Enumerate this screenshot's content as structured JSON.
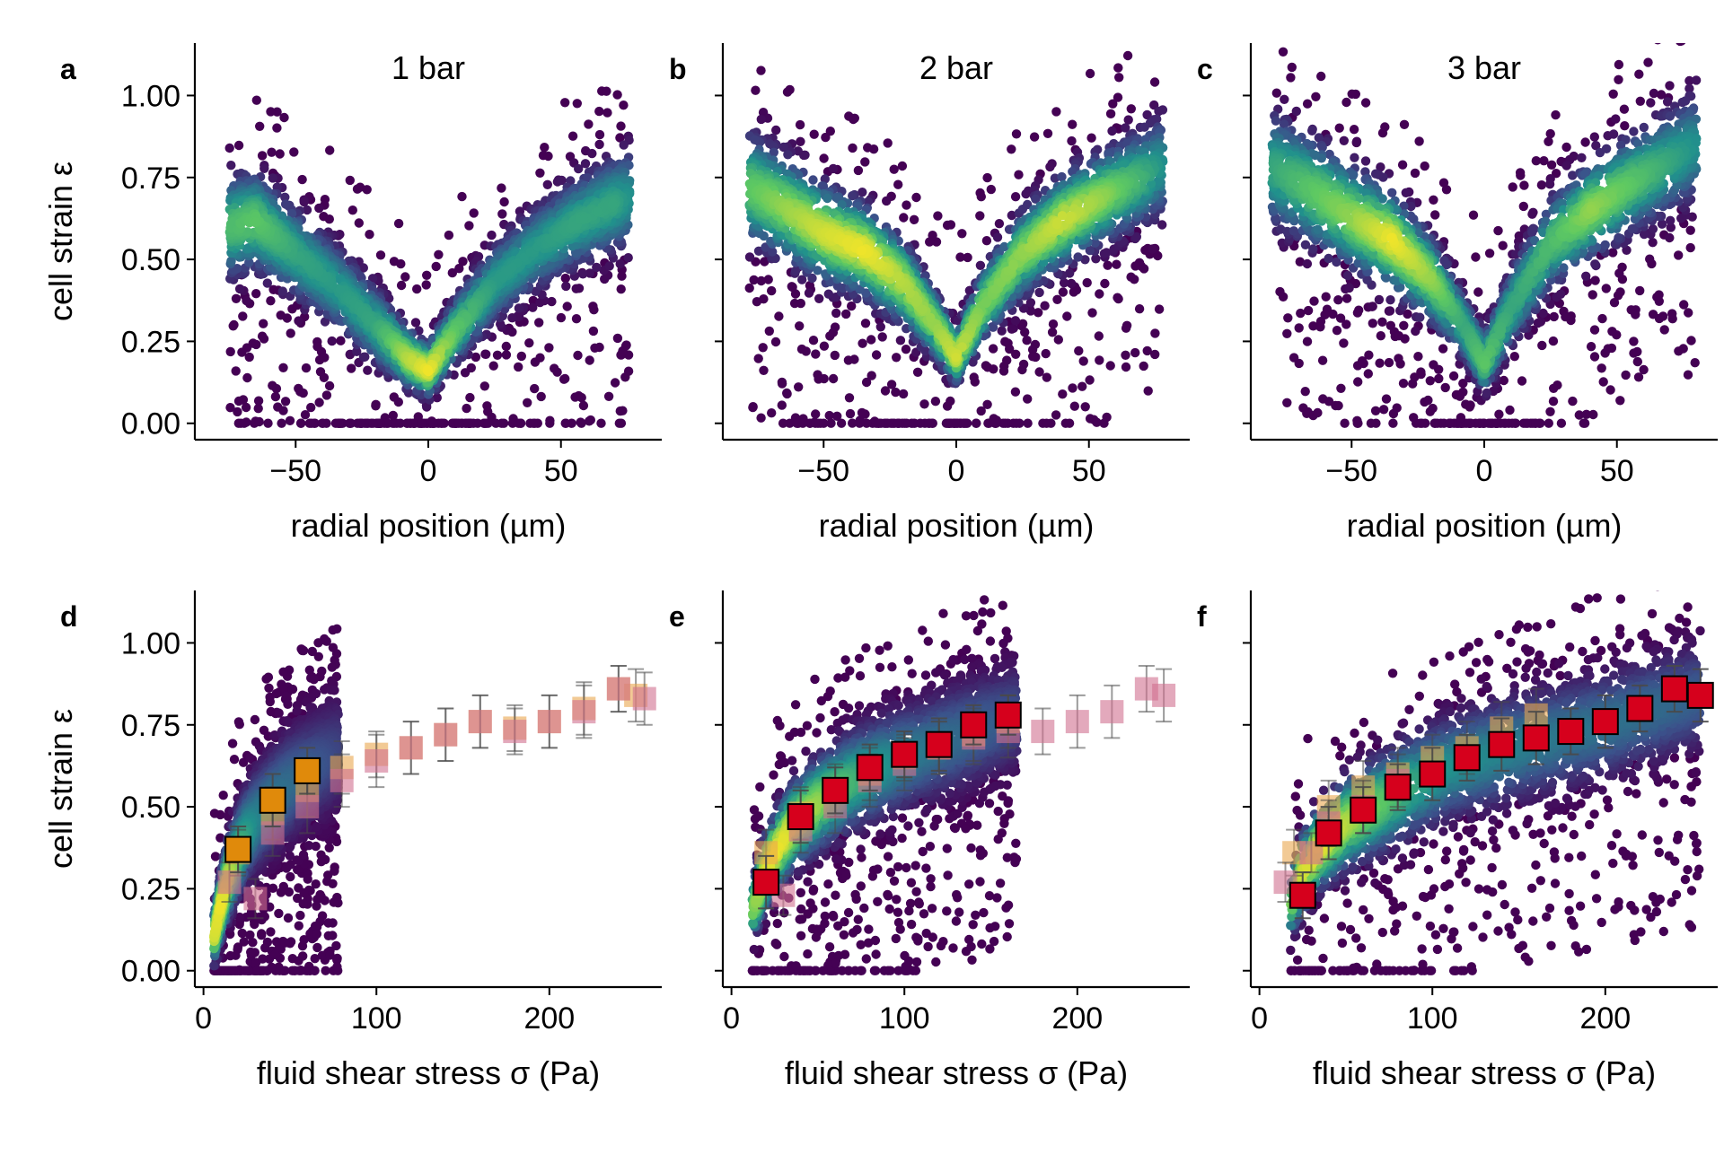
{
  "colors": {
    "viridis": [
      "#440154",
      "#3b528b",
      "#21918c",
      "#5ec962",
      "#fde725"
    ],
    "square_orange": "#e08a0b",
    "square_red": "#d6001c",
    "square_faded_orange": "#e9a64e",
    "square_faded_pink": "#d1708f",
    "errorbar": "#4a4a4a"
  },
  "chart_data": [
    {
      "panel": "a",
      "type": "scatter",
      "title": "1 bar",
      "xlabel": "radial position (µm)",
      "ylabel": "cell strain ε",
      "xlim": [
        -88,
        88
      ],
      "ylim": [
        -0.05,
        1.16
      ],
      "xticks": [
        {
          "v": -50,
          "label": "−50"
        },
        {
          "v": 0,
          "label": "0"
        },
        {
          "v": 50,
          "label": "50"
        }
      ],
      "yticks": [
        {
          "v": 0,
          "label": "0.00"
        },
        {
          "v": 0.25,
          "label": "0.25"
        },
        {
          "v": 0.5,
          "label": "0.50"
        },
        {
          "v": 0.75,
          "label": "0.75"
        },
        {
          "v": 1.0,
          "label": "1.00"
        }
      ],
      "density_ridge": {
        "x": [
          -75,
          -65,
          -50,
          -35,
          -20,
          -8,
          0,
          10,
          25,
          40,
          55,
          70,
          76
        ],
        "y": [
          0.6,
          0.62,
          0.52,
          0.42,
          0.3,
          0.2,
          0.16,
          0.28,
          0.43,
          0.53,
          0.61,
          0.67,
          0.69
        ]
      },
      "ridge_width": [
        0.16,
        0.15,
        0.14,
        0.13,
        0.12,
        0.09,
        0.08,
        0.1,
        0.12,
        0.13,
        0.14,
        0.15,
        0.16
      ],
      "peak_intensity": [
        0.7,
        0.75,
        0.6,
        0.55,
        0.6,
        0.9,
        1.0,
        0.75,
        0.55,
        0.55,
        0.6,
        0.6,
        0.5
      ]
    },
    {
      "panel": "b",
      "type": "scatter",
      "title": "2 bar",
      "xlabel": "radial position (µm)",
      "ylabel": "",
      "xlim": [
        -88,
        88
      ],
      "ylim": [
        -0.05,
        1.16
      ],
      "xticks": [
        {
          "v": -50,
          "label": "−50"
        },
        {
          "v": 0,
          "label": "0"
        },
        {
          "v": 50,
          "label": "50"
        }
      ],
      "yticks": [
        {
          "v": 0
        },
        {
          "v": 0.25
        },
        {
          "v": 0.5
        },
        {
          "v": 0.75
        },
        {
          "v": 1.0
        }
      ],
      "density_ridge": {
        "x": [
          -78,
          -65,
          -50,
          -35,
          -20,
          -8,
          0,
          10,
          25,
          40,
          55,
          70,
          78
        ],
        "y": [
          0.72,
          0.66,
          0.58,
          0.53,
          0.43,
          0.3,
          0.2,
          0.36,
          0.52,
          0.62,
          0.69,
          0.75,
          0.79
        ]
      },
      "ridge_width": [
        0.17,
        0.16,
        0.15,
        0.14,
        0.13,
        0.1,
        0.08,
        0.11,
        0.13,
        0.14,
        0.14,
        0.15,
        0.16
      ],
      "peak_intensity": [
        0.75,
        0.85,
        0.95,
        1.0,
        0.9,
        0.85,
        0.95,
        0.8,
        0.85,
        0.95,
        0.85,
        0.65,
        0.5
      ]
    },
    {
      "panel": "c",
      "type": "scatter",
      "title": "3 bar",
      "xlabel": "radial position (µm)",
      "ylabel": "",
      "xlim": [
        -88,
        88
      ],
      "ylim": [
        -0.05,
        1.16
      ],
      "xticks": [
        {
          "v": -50,
          "label": "−50"
        },
        {
          "v": 0,
          "label": "0"
        },
        {
          "v": 50,
          "label": "50"
        }
      ],
      "yticks": [
        {
          "v": 0
        },
        {
          "v": 0.25
        },
        {
          "v": 0.5
        },
        {
          "v": 0.75
        },
        {
          "v": 1.0
        }
      ],
      "density_ridge": {
        "x": [
          -80,
          -65,
          -50,
          -35,
          -20,
          -8,
          0,
          10,
          25,
          40,
          55,
          70,
          80
        ],
        "y": [
          0.78,
          0.71,
          0.63,
          0.56,
          0.44,
          0.3,
          0.18,
          0.35,
          0.55,
          0.65,
          0.73,
          0.8,
          0.85
        ]
      },
      "ridge_width": [
        0.18,
        0.17,
        0.16,
        0.15,
        0.13,
        0.1,
        0.09,
        0.12,
        0.14,
        0.15,
        0.15,
        0.16,
        0.17
      ],
      "peak_intensity": [
        0.6,
        0.75,
        0.85,
        1.0,
        0.85,
        0.6,
        0.75,
        0.6,
        0.7,
        0.85,
        0.75,
        0.6,
        0.5
      ]
    },
    {
      "panel": "d",
      "type": "scatter",
      "title": "",
      "xlabel": "fluid shear stress σ (Pa)",
      "ylabel": "cell strain ε",
      "xlim": [
        -5,
        265
      ],
      "ylim": [
        -0.05,
        1.16
      ],
      "xticks": [
        {
          "v": 0,
          "label": "0"
        },
        {
          "v": 100,
          "label": "100"
        },
        {
          "v": 200,
          "label": "200"
        }
      ],
      "yticks": [
        {
          "v": 0,
          "label": "0.00"
        },
        {
          "v": 0.25,
          "label": "0.25"
        },
        {
          "v": 0.5,
          "label": "0.50"
        },
        {
          "v": 0.75,
          "label": "0.75"
        },
        {
          "v": 1.0,
          "label": "1.00"
        }
      ],
      "density_ridge": {
        "x": [
          6,
          10,
          15,
          20,
          25,
          30,
          40,
          50,
          60,
          70,
          78
        ],
        "y": [
          0.1,
          0.2,
          0.3,
          0.36,
          0.42,
          0.46,
          0.52,
          0.57,
          0.61,
          0.64,
          0.67
        ]
      },
      "ridge_width": [
        0.08,
        0.1,
        0.12,
        0.13,
        0.14,
        0.15,
        0.16,
        0.17,
        0.17,
        0.18,
        0.18
      ],
      "peak_intensity": [
        0.95,
        1.0,
        0.9,
        0.7,
        0.55,
        0.45,
        0.4,
        0.35,
        0.3,
        0.25,
        0.2
      ],
      "binned_active": {
        "x": [
          20,
          40,
          60
        ],
        "y": [
          0.37,
          0.52,
          0.61
        ],
        "err": [
          0.07,
          0.08,
          0.07
        ],
        "color": "orange"
      },
      "binned_faded": [
        {
          "x": [
            20,
            40,
            60,
            80,
            100,
            120,
            140,
            160,
            180,
            200,
            220,
            240,
            250
          ],
          "y": [
            0.36,
            0.48,
            0.55,
            0.62,
            0.66,
            0.68,
            0.72,
            0.76,
            0.74,
            0.76,
            0.8,
            0.86,
            0.84
          ],
          "err": [
            0.07,
            0.08,
            0.08,
            0.08,
            0.07,
            0.08,
            0.08,
            0.08,
            0.07,
            0.08,
            0.08,
            0.07,
            0.08
          ],
          "color": "faded_orange"
        },
        {
          "x": [
            15,
            30,
            40,
            60,
            80,
            100,
            120,
            140,
            160,
            180,
            200,
            220,
            240,
            255
          ],
          "y": [
            0.27,
            0.22,
            0.42,
            0.5,
            0.58,
            0.64,
            0.68,
            0.72,
            0.76,
            0.73,
            0.76,
            0.79,
            0.86,
            0.83
          ],
          "err": [
            0.06,
            0.06,
            0.07,
            0.08,
            0.08,
            0.08,
            0.08,
            0.08,
            0.08,
            0.07,
            0.08,
            0.08,
            0.07,
            0.08
          ],
          "color": "faded_pink"
        }
      ]
    },
    {
      "panel": "e",
      "type": "scatter",
      "title": "",
      "xlabel": "fluid shear stress σ (Pa)",
      "ylabel": "",
      "xlim": [
        -5,
        265
      ],
      "ylim": [
        -0.05,
        1.16
      ],
      "xticks": [
        {
          "v": 0,
          "label": "0"
        },
        {
          "v": 100,
          "label": "100"
        },
        {
          "v": 200,
          "label": "200"
        }
      ],
      "yticks": [
        {
          "v": 0
        },
        {
          "v": 0.25
        },
        {
          "v": 0.5
        },
        {
          "v": 0.75
        },
        {
          "v": 1.0
        }
      ],
      "density_ridge": {
        "x": [
          12,
          18,
          25,
          35,
          50,
          70,
          90,
          110,
          130,
          150,
          165
        ],
        "y": [
          0.18,
          0.28,
          0.36,
          0.44,
          0.51,
          0.58,
          0.63,
          0.67,
          0.71,
          0.75,
          0.78
        ]
      },
      "ridge_width": [
        0.09,
        0.11,
        0.12,
        0.13,
        0.14,
        0.15,
        0.16,
        0.16,
        0.17,
        0.17,
        0.17
      ],
      "peak_intensity": [
        0.8,
        0.95,
        1.0,
        0.95,
        0.85,
        0.65,
        0.5,
        0.4,
        0.35,
        0.3,
        0.25
      ],
      "binned_active": {
        "x": [
          20,
          40,
          60,
          80,
          100,
          120,
          140,
          160
        ],
        "y": [
          0.27,
          0.47,
          0.55,
          0.62,
          0.66,
          0.69,
          0.75,
          0.78
        ],
        "err": [
          0.08,
          0.08,
          0.07,
          0.07,
          0.07,
          0.08,
          0.06,
          0.06
        ],
        "color": "red"
      },
      "binned_faded": [
        {
          "x": [
            20,
            40,
            60,
            80,
            100,
            120,
            140,
            160
          ],
          "y": [
            0.36,
            0.48,
            0.55,
            0.6,
            0.65,
            0.68,
            0.72,
            0.76
          ],
          "err": [
            0.07,
            0.08,
            0.08,
            0.08,
            0.07,
            0.08,
            0.08,
            0.08
          ],
          "color": "faded_orange"
        },
        {
          "x": [
            30,
            40,
            60,
            80,
            100,
            120,
            140,
            160,
            180,
            200,
            220,
            240,
            250
          ],
          "y": [
            0.23,
            0.43,
            0.5,
            0.58,
            0.63,
            0.68,
            0.71,
            0.73,
            0.73,
            0.76,
            0.79,
            0.86,
            0.84
          ],
          "err": [
            0.06,
            0.07,
            0.08,
            0.08,
            0.08,
            0.08,
            0.08,
            0.08,
            0.07,
            0.08,
            0.08,
            0.07,
            0.08
          ],
          "color": "faded_pink"
        }
      ]
    },
    {
      "panel": "f",
      "type": "scatter",
      "title": "",
      "xlabel": "fluid shear stress σ (Pa)",
      "ylabel": "",
      "xlim": [
        -5,
        265
      ],
      "ylim": [
        -0.05,
        1.16
      ],
      "xticks": [
        {
          "v": 0,
          "label": "0"
        },
        {
          "v": 100,
          "label": "100"
        },
        {
          "v": 200,
          "label": "200"
        }
      ],
      "yticks": [
        {
          "v": 0
        },
        {
          "v": 0.25
        },
        {
          "v": 0.5
        },
        {
          "v": 0.75
        },
        {
          "v": 1.0
        }
      ],
      "density_ridge": {
        "x": [
          18,
          25,
          35,
          50,
          70,
          90,
          110,
          140,
          170,
          200,
          230,
          255
        ],
        "y": [
          0.2,
          0.3,
          0.38,
          0.45,
          0.51,
          0.57,
          0.62,
          0.67,
          0.71,
          0.75,
          0.8,
          0.84
        ]
      },
      "ridge_width": [
        0.1,
        0.12,
        0.13,
        0.14,
        0.15,
        0.16,
        0.16,
        0.17,
        0.17,
        0.17,
        0.17,
        0.17
      ],
      "peak_intensity": [
        0.8,
        0.95,
        1.0,
        0.9,
        0.75,
        0.6,
        0.5,
        0.45,
        0.4,
        0.38,
        0.35,
        0.3
      ],
      "binned_active": {
        "x": [
          25,
          40,
          60,
          80,
          100,
          120,
          140,
          160,
          180,
          200,
          220,
          240,
          255
        ],
        "y": [
          0.23,
          0.42,
          0.49,
          0.56,
          0.6,
          0.65,
          0.69,
          0.71,
          0.73,
          0.76,
          0.8,
          0.86,
          0.84
        ],
        "err": [
          0.07,
          0.08,
          0.07,
          0.07,
          0.08,
          0.07,
          0.08,
          0.08,
          0.07,
          0.08,
          0.07,
          0.07,
          0.08
        ],
        "color": "red"
      },
      "binned_faded": [
        {
          "x": [
            20,
            40,
            60,
            80,
            100,
            120,
            140,
            160
          ],
          "y": [
            0.36,
            0.5,
            0.56,
            0.6,
            0.65,
            0.68,
            0.74,
            0.78
          ],
          "err": [
            0.07,
            0.08,
            0.08,
            0.08,
            0.07,
            0.08,
            0.08,
            0.08
          ],
          "color": "faded_orange"
        },
        {
          "x": [
            15,
            30,
            40,
            60,
            80
          ],
          "y": [
            0.27,
            0.36,
            0.45,
            0.5,
            0.58
          ],
          "err": [
            0.06,
            0.06,
            0.07,
            0.08,
            0.08
          ],
          "color": "faded_pink"
        }
      ]
    }
  ]
}
